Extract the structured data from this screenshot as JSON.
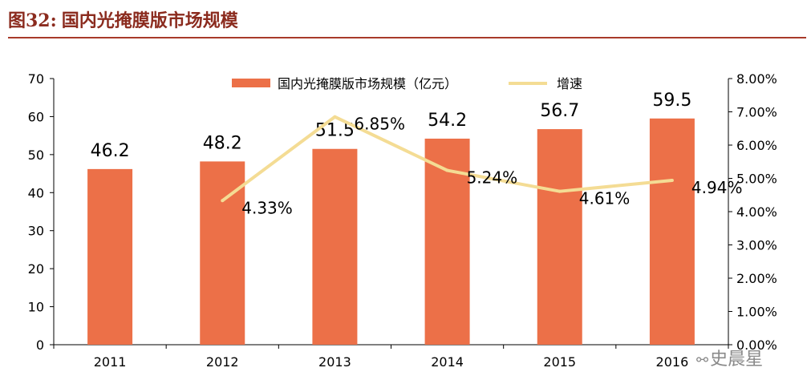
{
  "header": {
    "figure_no": "图32:",
    "figure_title": "国内光掩膜版市场规模"
  },
  "watermark": {
    "text": "史晨星",
    "icon": "wechat-icon"
  },
  "colors": {
    "bar": "#ec7048",
    "line": "#f4dc94",
    "title": "#8b2b1e",
    "axis": "#000000"
  },
  "chart_data": {
    "type": "bar",
    "title": "国内光掩膜版市场规模",
    "categories": [
      "2011",
      "2012",
      "2013",
      "2014",
      "2015",
      "2016"
    ],
    "series": [
      {
        "name": "国内光掩膜版市场规模（亿元）",
        "type": "bar",
        "axis": "left",
        "values": [
          46.2,
          48.2,
          51.5,
          54.2,
          56.7,
          59.5
        ],
        "labels": [
          "46.2",
          "48.2",
          "51.5",
          "54.2",
          "56.7",
          "59.5"
        ]
      },
      {
        "name": "增速",
        "type": "line",
        "axis": "right",
        "values": [
          null,
          4.33,
          6.85,
          5.24,
          4.61,
          4.94
        ],
        "labels": [
          null,
          "4.33%",
          "6.85%",
          "5.24%",
          "4.61%",
          "4.94%"
        ]
      }
    ],
    "y_left": {
      "range": [
        0,
        70
      ],
      "ticks": [
        "0",
        "10",
        "20",
        "30",
        "40",
        "50",
        "60",
        "70"
      ]
    },
    "y_right": {
      "range": [
        0,
        8
      ],
      "ticks": [
        "0.00%",
        "1.00%",
        "2.00%",
        "3.00%",
        "4.00%",
        "5.00%",
        "6.00%",
        "7.00%",
        "8.00%"
      ]
    },
    "legend_position": "top-center",
    "grid": false
  }
}
